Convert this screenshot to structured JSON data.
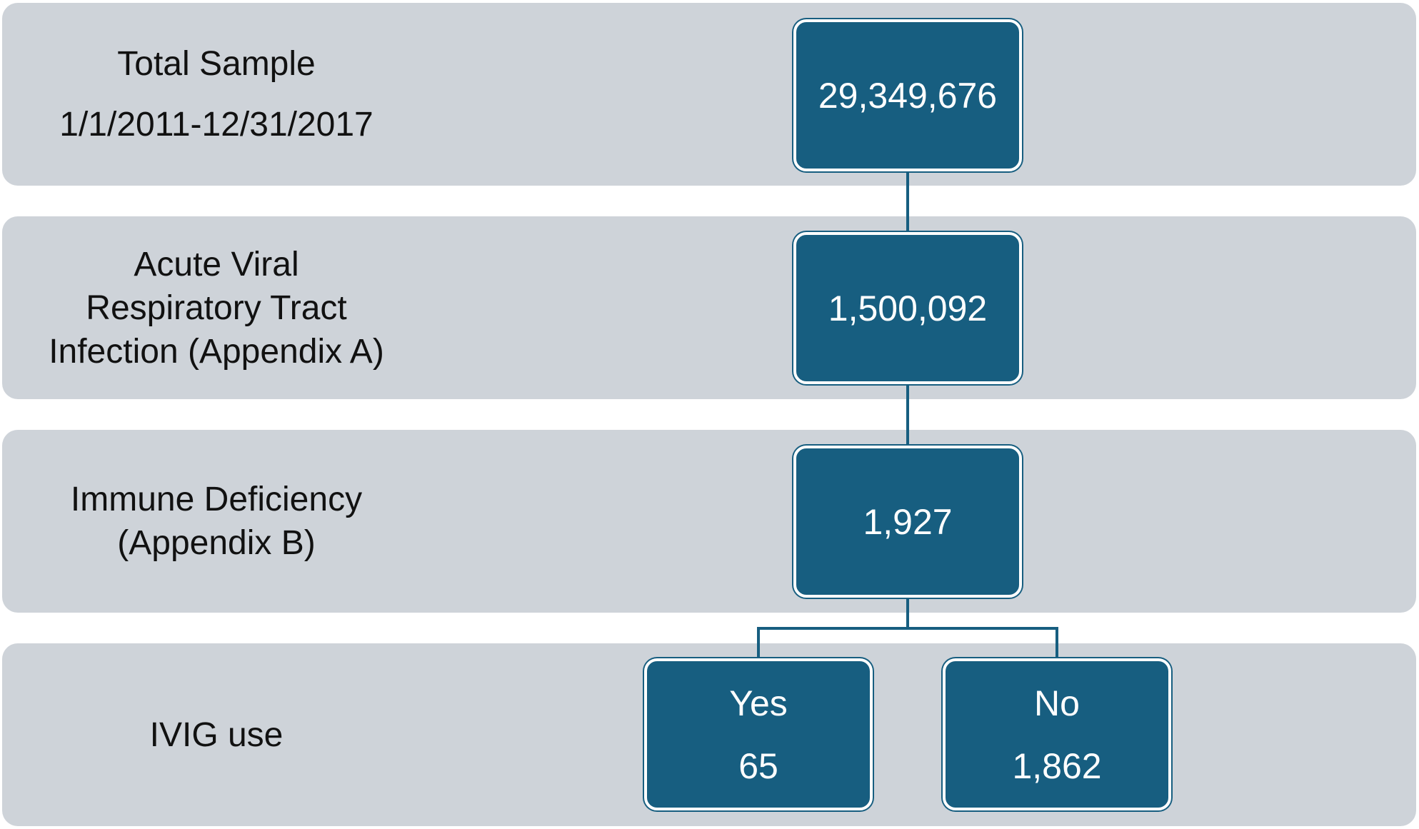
{
  "rows": [
    {
      "label_lines": [
        "Total Sample",
        "1/1/2011-12/31/2017"
      ],
      "count": "29,349,676"
    },
    {
      "label_lines": [
        "Acute Viral",
        "Respiratory Tract",
        "Infection (Appendix A)"
      ],
      "count": "1,500,092"
    },
    {
      "label_lines": [
        "Immune Deficiency",
        "(Appendix B)"
      ],
      "count": "1,927"
    },
    {
      "label_lines": [
        "IVIG use"
      ]
    }
  ],
  "branches": [
    {
      "label": "Yes",
      "count": "65"
    },
    {
      "label": "No",
      "count": "1,862"
    }
  ],
  "colors": {
    "band": "#ced3d9",
    "box": "#175e80",
    "connector": "#175e80",
    "box_text": "#ffffff",
    "label_text": "#111111"
  }
}
